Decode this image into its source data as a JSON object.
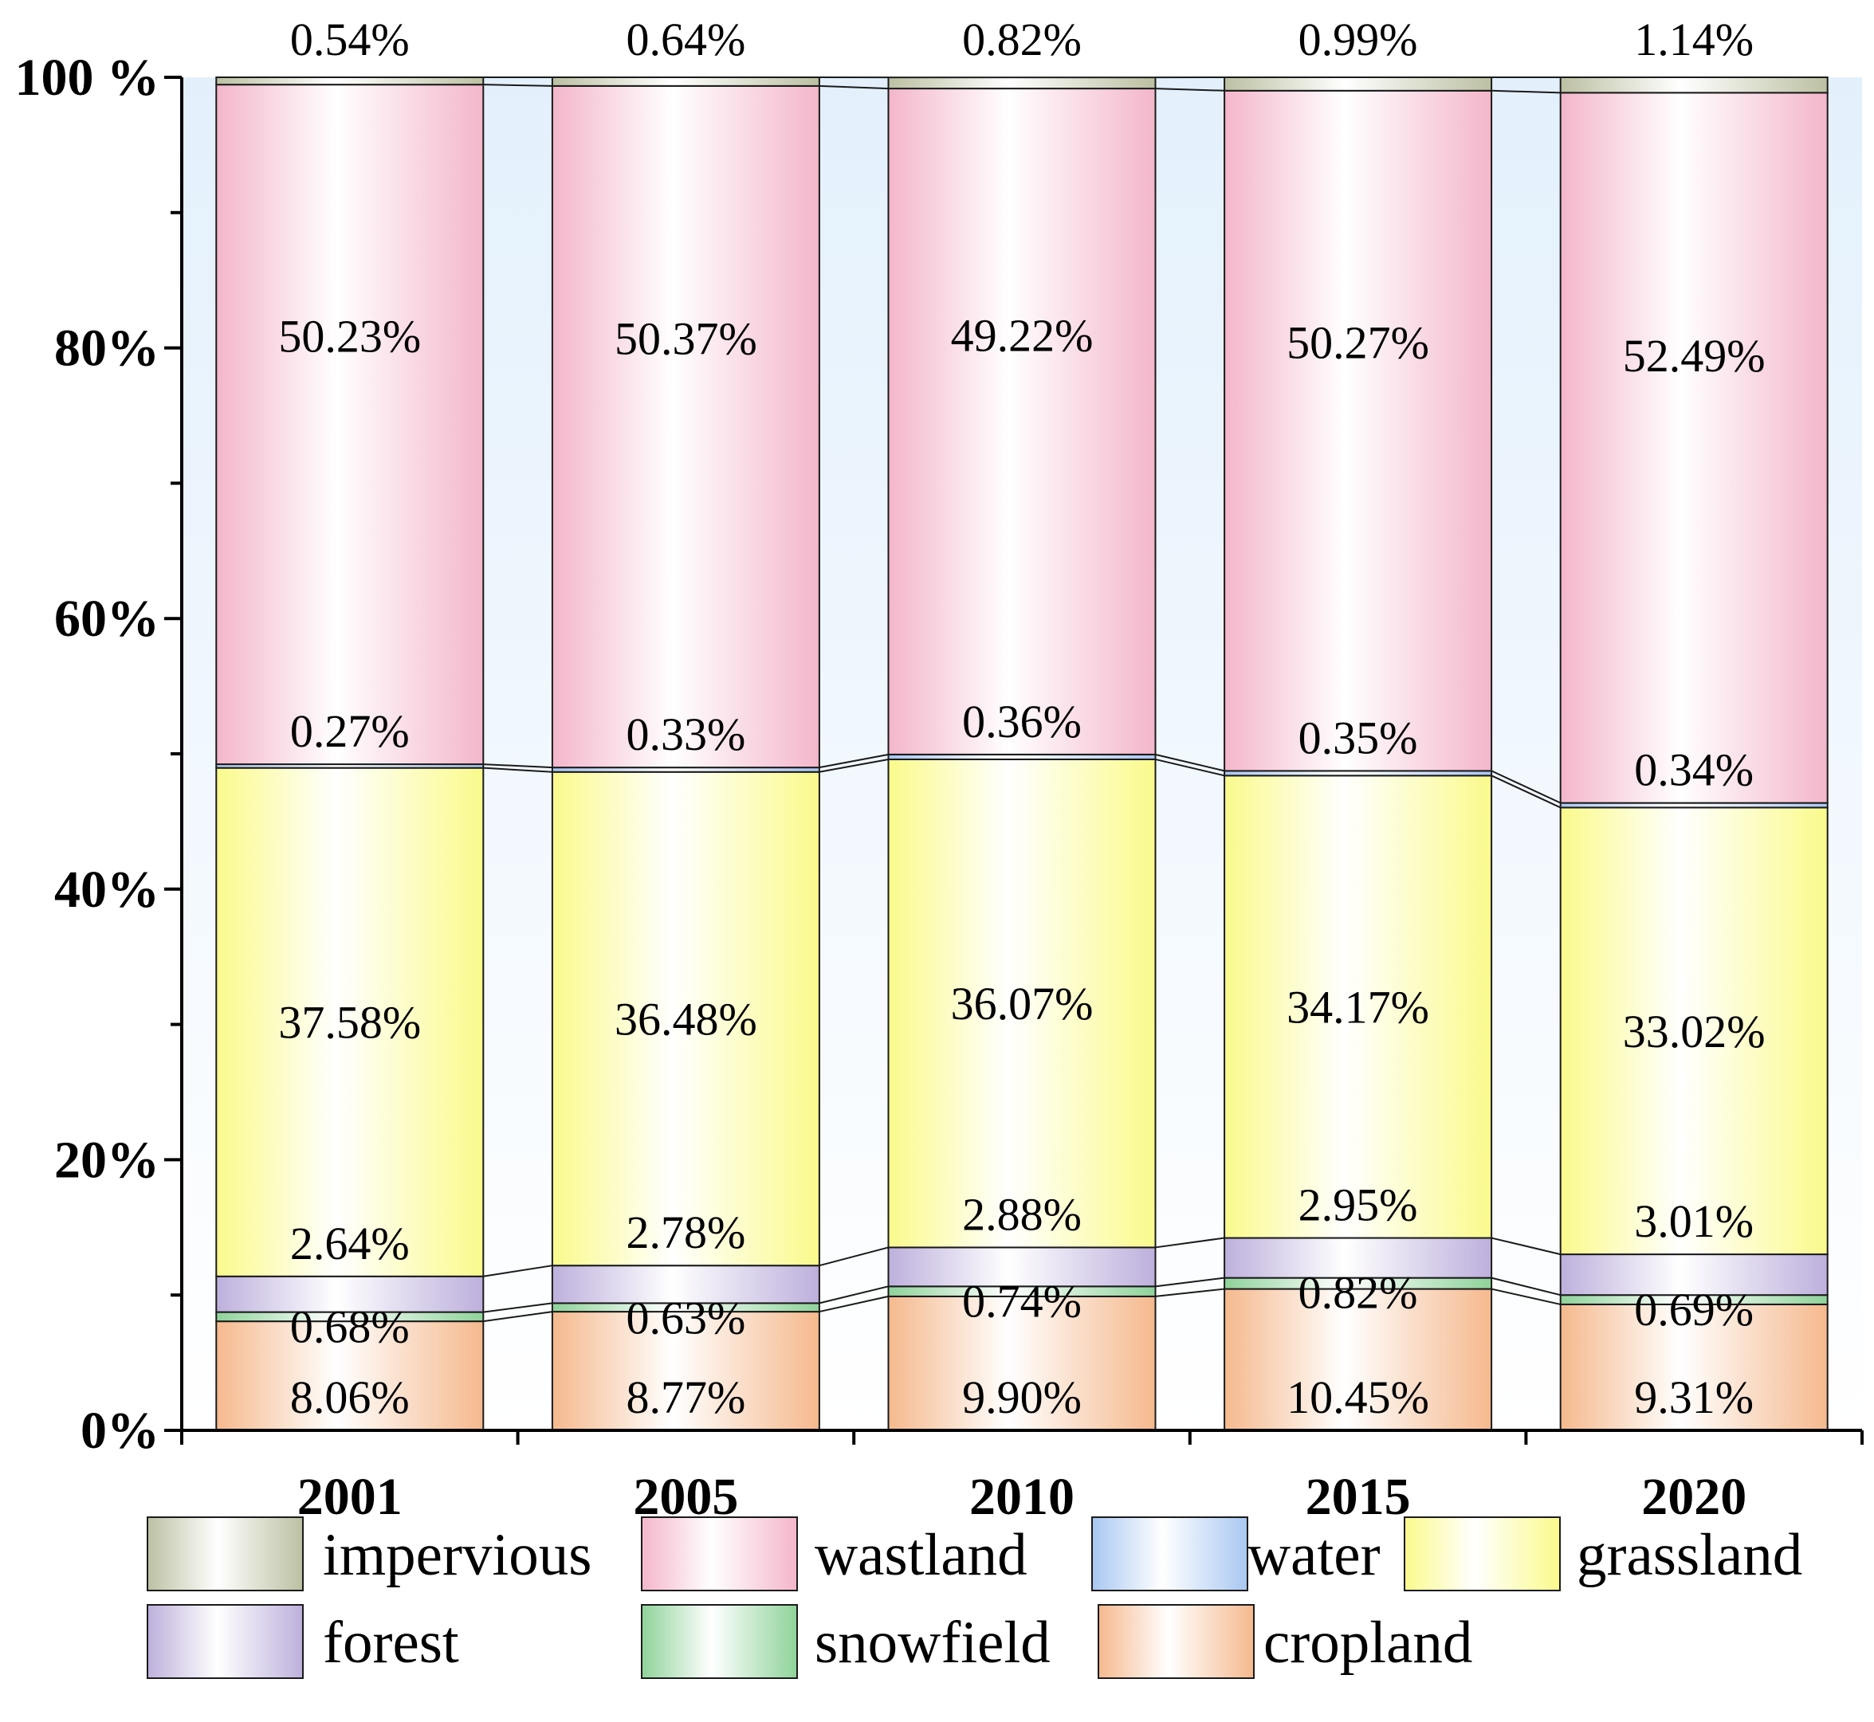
{
  "chart_data": {
    "type": "bar",
    "stacked": true,
    "percent": true,
    "categories": [
      "2001",
      "2005",
      "2010",
      "2015",
      "2020"
    ],
    "ylim": [
      0,
      100
    ],
    "yticks": [
      "0%",
      "20%",
      "40%",
      "60%",
      "80%",
      "100%"
    ],
    "legend_position": "bottom",
    "series": [
      {
        "name": "cropland",
        "color": "#f5b98e",
        "values": [
          8.06,
          8.77,
          9.9,
          10.45,
          9.31
        ],
        "labels": [
          "8.06%",
          "8.77%",
          "9.90%",
          "10.45%",
          "9.31%"
        ]
      },
      {
        "name": "snowfield",
        "color": "#8fd39a",
        "values": [
          0.68,
          0.63,
          0.74,
          0.82,
          0.69
        ],
        "labels": [
          "0.68%",
          "0.63%",
          "0.74%",
          "0.82%",
          "0.69%"
        ]
      },
      {
        "name": "forest",
        "color": "#bdb0dc",
        "values": [
          2.64,
          2.78,
          2.88,
          2.95,
          3.01
        ],
        "labels": [
          "2.64%",
          "2.78%",
          "2.88%",
          "2.95%",
          "3.01%"
        ]
      },
      {
        "name": "grassland",
        "color": "#fafa8c",
        "values": [
          37.58,
          36.48,
          36.07,
          34.17,
          33.02
        ],
        "labels": [
          "37.58%",
          "36.48%",
          "36.07%",
          "34.17%",
          "33.02%"
        ]
      },
      {
        "name": "water",
        "color": "#a9c7f2",
        "values": [
          0.27,
          0.33,
          0.36,
          0.35,
          0.34
        ],
        "labels": [
          "0.27%",
          "0.33%",
          "0.36%",
          "0.35%",
          "0.34%"
        ]
      },
      {
        "name": "wastland",
        "color": "#f4b6cb",
        "values": [
          50.23,
          50.37,
          49.22,
          50.27,
          52.49
        ],
        "labels": [
          "50.23%",
          "50.37%",
          "49.22%",
          "50.27%",
          "52.49%"
        ]
      },
      {
        "name": "impervious",
        "color": "#bcc0a2",
        "values": [
          0.54,
          0.64,
          0.82,
          0.99,
          1.14
        ],
        "labels": [
          "0.54%",
          "0.64%",
          "0.82%",
          "0.99%",
          "1.14%"
        ]
      }
    ],
    "legend_order": [
      "impervious",
      "wastland",
      "water",
      "grassland",
      "forest",
      "snowfield",
      "cropland"
    ],
    "tick_label_100": "100 %"
  }
}
